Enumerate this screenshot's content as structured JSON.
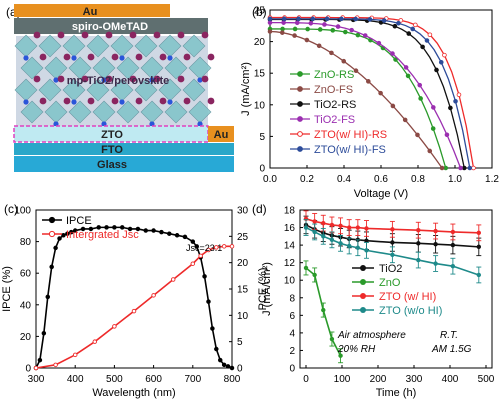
{
  "panels": {
    "a": {
      "label": "(a)",
      "layers": [
        {
          "name": "Au",
          "color": "#e8901f"
        },
        {
          "name": "spiro-OMeTAD",
          "color": "#5f6f70"
        },
        {
          "name": "mp-TiO2/perovskite",
          "color": "#9c6f93"
        },
        {
          "name": "ZTO",
          "color": "#bfeaf2"
        },
        {
          "name": "Au",
          "color": "#e8901f"
        },
        {
          "name": "FTO",
          "color": "#2aa7c9"
        },
        {
          "name": "Glass",
          "color": "#28a9d6"
        }
      ]
    },
    "b": {
      "label": "(b)"
    },
    "c": {
      "label": "(c)",
      "jsc_annotation": "Jsc=23.1"
    },
    "d": {
      "label": "(d)",
      "annotations": [
        "Air atmosphere",
        "20% RH",
        "R.T.",
        "AM 1.5G"
      ]
    }
  },
  "chart_data": [
    {
      "panel": "b",
      "type": "line",
      "xlabel": "Voltage (V)",
      "ylabel": "J (mA/cm²)",
      "xlim": [
        0.0,
        1.2
      ],
      "ylim": [
        0,
        25
      ],
      "xticks": [
        "0.0",
        "0.2",
        "0.4",
        "0.6",
        "0.8",
        "1.0",
        "1.2"
      ],
      "yticks": [
        "0",
        "5",
        "10",
        "15",
        "20",
        "25"
      ],
      "legend": "bottom-left",
      "series": [
        {
          "name": "ZnO-RS",
          "color": "#2a9a2a",
          "marker": "circle-filled",
          "jsc": 22.0,
          "voc": 0.95,
          "n": 4.5
        },
        {
          "name": "ZnO-FS",
          "color": "#8b4a45",
          "marker": "circle-filled",
          "jsc": 21.6,
          "voc": 0.93,
          "n": 1.8
        },
        {
          "name": "TiO2-RS",
          "color": "#111111",
          "marker": "circle-filled",
          "jsc": 23.5,
          "voc": 1.05,
          "n": 7
        },
        {
          "name": "TiO2-FS",
          "color": "#9b2fb0",
          "marker": "circle-filled",
          "jsc": 23.0,
          "voc": 1.03,
          "n": 3.5
        },
        {
          "name": "ZTO(w/ HI)-RS",
          "color": "#ee2a2a",
          "marker": "circle-open",
          "jsc": 23.8,
          "voc": 1.1,
          "n": 9
        },
        {
          "name": "ZTO(w/ HI)-FS",
          "color": "#2d4c9a",
          "marker": "circle-filled",
          "jsc": 23.6,
          "voc": 1.08,
          "n": 8
        }
      ]
    },
    {
      "panel": "c",
      "type": "line",
      "xlabel": "Wavelength (nm)",
      "ylabel_left": "IPCE (%)",
      "ylabel_right": "J (mA/cm²)",
      "xlim": [
        300,
        800
      ],
      "ylim_left": [
        0,
        100
      ],
      "ylim_right": [
        0,
        30
      ],
      "xticks": [
        "300",
        "400",
        "500",
        "600",
        "700",
        "800"
      ],
      "yticks_left": [
        "0",
        "20",
        "40",
        "60",
        "80",
        "100"
      ],
      "yticks_right": [
        "0",
        "5",
        "10",
        "15",
        "20",
        "25",
        "30"
      ],
      "legend": "top-left",
      "series": [
        {
          "name": "IPCE",
          "color": "#000000",
          "axis": "left",
          "x": [
            300,
            310,
            320,
            330,
            340,
            350,
            360,
            370,
            380,
            390,
            400,
            420,
            440,
            460,
            480,
            500,
            520,
            540,
            560,
            580,
            600,
            620,
            640,
            660,
            680,
            700,
            710,
            720,
            730,
            740,
            750,
            760,
            770,
            780,
            790,
            800
          ],
          "y": [
            0,
            5,
            22,
            45,
            64,
            76,
            82,
            84,
            85,
            86,
            87,
            88,
            88,
            89,
            89,
            89,
            89,
            88,
            88,
            87,
            87,
            86,
            85,
            84,
            83,
            80,
            77,
            70,
            58,
            42,
            25,
            12,
            5,
            2,
            1,
            0
          ]
        },
        {
          "name": "Intergrated Jsc",
          "color": "#ee2a2a",
          "axis": "right",
          "x": [
            300,
            350,
            400,
            450,
            500,
            550,
            600,
            650,
            700,
            720,
            740,
            760,
            780,
            800
          ],
          "y": [
            0,
            0.6,
            2.5,
            5.0,
            7.9,
            10.8,
            13.8,
            16.8,
            19.8,
            21.3,
            22.4,
            22.9,
            23.1,
            23.1
          ]
        }
      ]
    },
    {
      "panel": "d",
      "type": "line",
      "xlabel": "Time (h)",
      "ylabel": "PCE (%)",
      "xlim": [
        0,
        500
      ],
      "ylim": [
        0,
        18
      ],
      "xticks": [
        "0",
        "100",
        "200",
        "300",
        "400",
        "500"
      ],
      "yticks": [
        "0",
        "2",
        "4",
        "6",
        "8",
        "10",
        "12",
        "14",
        "16",
        "18"
      ],
      "legend": "center-right",
      "series": [
        {
          "name": "TiO2",
          "color": "#111111",
          "x": [
            0,
            24,
            48,
            72,
            96,
            120,
            144,
            168,
            240,
            312,
            360,
            408,
            480
          ],
          "y": [
            16.3,
            15.8,
            15.4,
            15.1,
            14.9,
            14.7,
            14.6,
            14.5,
            14.3,
            14.2,
            14.1,
            14.0,
            13.8
          ],
          "err": 1.0
        },
        {
          "name": "ZnO",
          "color": "#2a9a2a",
          "x": [
            0,
            24,
            48,
            72,
            96
          ],
          "y": [
            11.4,
            10.6,
            6.6,
            3.3,
            1.4
          ],
          "err": 0.8
        },
        {
          "name": "ZTO (w/ HI)",
          "color": "#ee2a2a",
          "x": [
            0,
            24,
            48,
            72,
            96,
            120,
            144,
            168,
            240,
            312,
            360,
            408,
            480
          ],
          "y": [
            17.0,
            16.7,
            16.5,
            16.3,
            16.2,
            16.0,
            16.0,
            15.9,
            15.8,
            15.7,
            15.6,
            15.5,
            15.4
          ],
          "err": 0.9
        },
        {
          "name": "ZTO (w/o HI)",
          "color": "#1e8a8a",
          "x": [
            0,
            24,
            48,
            72,
            96,
            120,
            144,
            168,
            240,
            312,
            360,
            408,
            480
          ],
          "y": [
            16.0,
            15.5,
            15.0,
            14.6,
            14.2,
            13.9,
            13.7,
            13.4,
            12.9,
            12.3,
            11.9,
            11.6,
            10.6
          ],
          "err": 0.9
        }
      ]
    }
  ]
}
